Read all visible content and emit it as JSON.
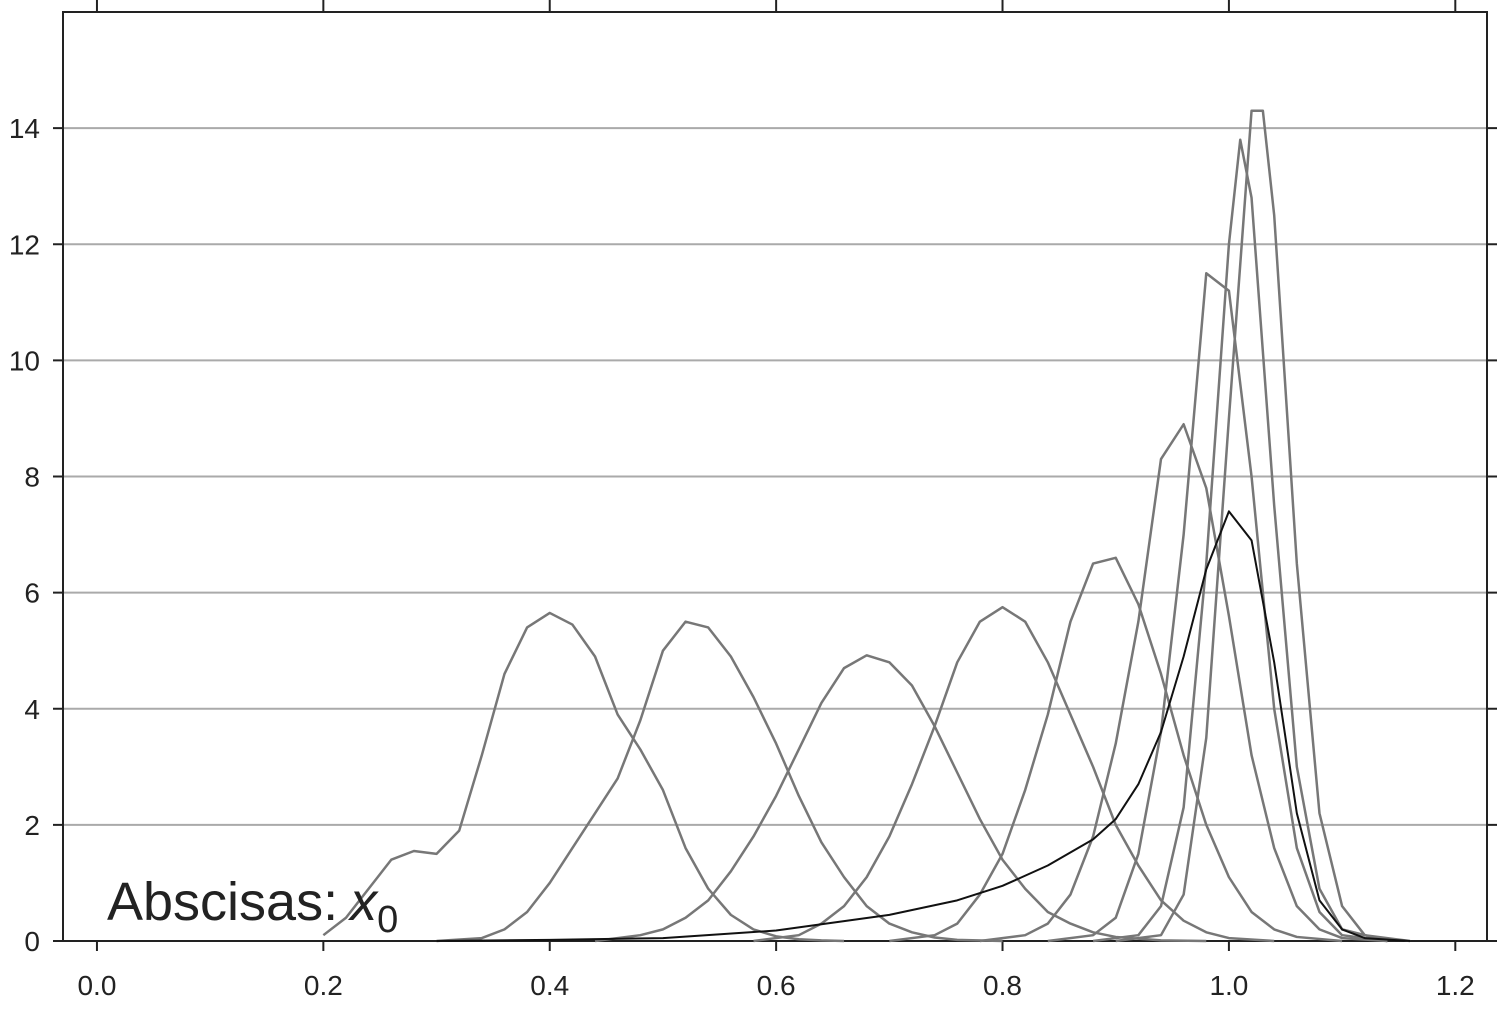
{
  "chart_data": {
    "type": "line",
    "annotation": {
      "text": "Abscisas:",
      "var": "x",
      "sub": "0"
    },
    "xlim": [
      -0.03,
      1.228
    ],
    "ylim": [
      0,
      16
    ],
    "xticks": [
      {
        "value": 0,
        "label": "0.0"
      },
      0.2,
      0.4,
      0.6,
      0.8,
      {
        "value": 1,
        "label": "1.0"
      },
      1.2
    ],
    "yticks": [
      0,
      2,
      4,
      6,
      8,
      10,
      12,
      14
    ],
    "grid": true,
    "series": [
      {
        "color": "#777777",
        "x": [
          0.2,
          0.22,
          0.24,
          0.26,
          0.28,
          0.3,
          0.32,
          0.34,
          0.36,
          0.38,
          0.4,
          0.42,
          0.44,
          0.46,
          0.48,
          0.5,
          0.52,
          0.54,
          0.56,
          0.58,
          0.6,
          0.62,
          0.64,
          0.66
        ],
        "values": [
          0.1,
          0.4,
          0.9,
          1.4,
          1.55,
          1.5,
          1.9,
          3.2,
          4.6,
          5.4,
          5.65,
          5.45,
          4.9,
          3.9,
          3.3,
          2.6,
          1.6,
          0.9,
          0.45,
          0.2,
          0.08,
          0.03,
          0.01,
          0
        ]
      },
      {
        "color": "#777777",
        "x": [
          0.3,
          0.34,
          0.36,
          0.38,
          0.4,
          0.42,
          0.44,
          0.46,
          0.48,
          0.5,
          0.52,
          0.54,
          0.56,
          0.58,
          0.6,
          0.62,
          0.64,
          0.66,
          0.68,
          0.7,
          0.72,
          0.74,
          0.76,
          0.8
        ],
        "values": [
          0,
          0.05,
          0.2,
          0.5,
          1.0,
          1.6,
          2.2,
          2.8,
          3.8,
          5.0,
          5.5,
          5.4,
          4.9,
          4.2,
          3.4,
          2.5,
          1.7,
          1.1,
          0.6,
          0.3,
          0.15,
          0.06,
          0.02,
          0
        ]
      },
      {
        "color": "#777777",
        "x": [
          0.44,
          0.48,
          0.5,
          0.52,
          0.54,
          0.56,
          0.58,
          0.6,
          0.62,
          0.64,
          0.66,
          0.68,
          0.7,
          0.72,
          0.74,
          0.76,
          0.78,
          0.8,
          0.82,
          0.84,
          0.86,
          0.88,
          0.9,
          0.94,
          0.98
        ],
        "values": [
          0,
          0.1,
          0.2,
          0.4,
          0.7,
          1.2,
          1.8,
          2.5,
          3.3,
          4.1,
          4.7,
          4.92,
          4.8,
          4.4,
          3.7,
          2.9,
          2.1,
          1.4,
          0.9,
          0.5,
          0.3,
          0.15,
          0.07,
          0.01,
          0
        ]
      },
      {
        "color": "#777777",
        "x": [
          0.58,
          0.62,
          0.64,
          0.66,
          0.68,
          0.7,
          0.72,
          0.74,
          0.76,
          0.78,
          0.8,
          0.82,
          0.84,
          0.86,
          0.88,
          0.9,
          0.92,
          0.94,
          0.96,
          0.98,
          1.0,
          1.04
        ],
        "values": [
          0,
          0.1,
          0.3,
          0.6,
          1.1,
          1.8,
          2.7,
          3.7,
          4.8,
          5.5,
          5.75,
          5.5,
          4.8,
          3.9,
          3.0,
          2.0,
          1.3,
          0.7,
          0.35,
          0.15,
          0.05,
          0
        ]
      },
      {
        "color": "#777777",
        "x": [
          0.7,
          0.74,
          0.76,
          0.78,
          0.8,
          0.82,
          0.84,
          0.86,
          0.88,
          0.9,
          0.92,
          0.94,
          0.96,
          0.98,
          1.0,
          1.02,
          1.04,
          1.06,
          1.1
        ],
        "values": [
          0,
          0.1,
          0.3,
          0.8,
          1.5,
          2.6,
          3.9,
          5.5,
          6.5,
          6.6,
          5.8,
          4.6,
          3.2,
          2.0,
          1.1,
          0.5,
          0.2,
          0.07,
          0
        ]
      },
      {
        "color": "#777777",
        "x": [
          0.78,
          0.82,
          0.84,
          0.86,
          0.88,
          0.9,
          0.92,
          0.94,
          0.96,
          0.98,
          1.0,
          1.02,
          1.04,
          1.06,
          1.08,
          1.1,
          1.14
        ],
        "values": [
          0,
          0.1,
          0.3,
          0.8,
          1.8,
          3.4,
          5.5,
          8.3,
          8.9,
          7.8,
          5.6,
          3.2,
          1.6,
          0.6,
          0.2,
          0.05,
          0
        ]
      },
      {
        "color": "#777777",
        "x": [
          0.84,
          0.88,
          0.9,
          0.92,
          0.94,
          0.96,
          0.98,
          1.0,
          1.02,
          1.04,
          1.06,
          1.08,
          1.1,
          1.14
        ],
        "values": [
          0,
          0.1,
          0.4,
          1.5,
          3.6,
          7.0,
          11.5,
          11.2,
          8.0,
          4.0,
          1.6,
          0.5,
          0.1,
          0
        ]
      },
      {
        "color": "#777777",
        "x": [
          0.88,
          0.92,
          0.94,
          0.96,
          0.98,
          1.0,
          1.01,
          1.02,
          1.04,
          1.06,
          1.08,
          1.1,
          1.14
        ],
        "values": [
          0,
          0.1,
          0.6,
          2.3,
          6.5,
          12.0,
          13.8,
          12.8,
          7.5,
          3.0,
          0.9,
          0.2,
          0
        ]
      },
      {
        "color": "#777777",
        "x": [
          0.9,
          0.94,
          0.96,
          0.98,
          1.0,
          1.02,
          1.03,
          1.04,
          1.06,
          1.08,
          1.1,
          1.12,
          1.16
        ],
        "values": [
          0,
          0.1,
          0.8,
          3.5,
          9.0,
          14.3,
          14.3,
          12.5,
          6.5,
          2.2,
          0.6,
          0.1,
          0
        ]
      },
      {
        "color": "#111111",
        "x": [
          0.3,
          0.4,
          0.5,
          0.6,
          0.7,
          0.76,
          0.8,
          0.84,
          0.88,
          0.9,
          0.92,
          0.94,
          0.96,
          0.98,
          1.0,
          1.02,
          1.04,
          1.06,
          1.08,
          1.1,
          1.12,
          1.16
        ],
        "values": [
          0,
          0.02,
          0.05,
          0.18,
          0.45,
          0.7,
          0.95,
          1.3,
          1.75,
          2.1,
          2.7,
          3.6,
          4.9,
          6.4,
          7.4,
          6.9,
          4.8,
          2.2,
          0.7,
          0.2,
          0.05,
          0
        ]
      }
    ]
  }
}
